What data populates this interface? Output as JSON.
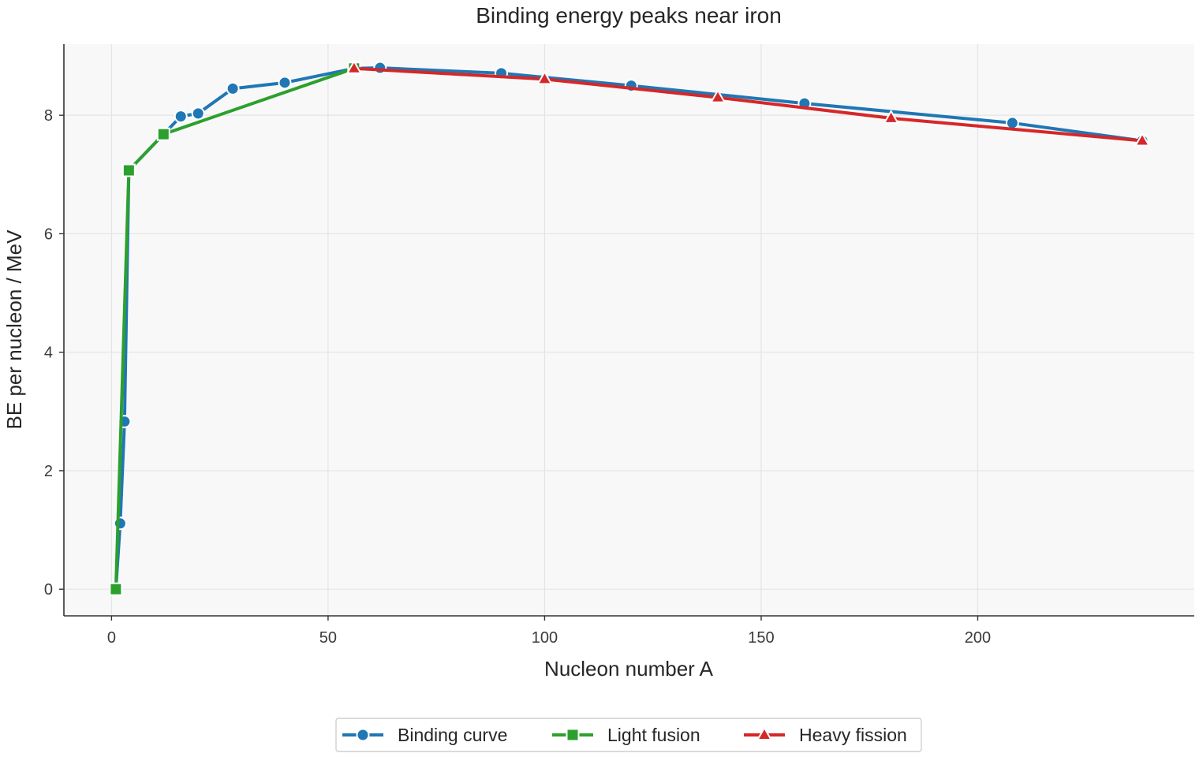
{
  "chart_data": {
    "type": "line",
    "title": "Binding energy peaks near iron",
    "xlabel": "Nucleon number A",
    "ylabel": "BE per nucleon / MeV",
    "xlim": [
      -11,
      250
    ],
    "ylim": [
      -0.45,
      9.2
    ],
    "xticks": [
      0,
      50,
      100,
      150,
      200
    ],
    "yticks": [
      0,
      2,
      4,
      6,
      8
    ],
    "grid": true,
    "legend_position": "bottom-center",
    "series": [
      {
        "name": "Binding curve",
        "color": "#1f77b4",
        "marker": "circle",
        "x": [
          1,
          2,
          3,
          4,
          12,
          16,
          20,
          28,
          40,
          56,
          62,
          90,
          120,
          160,
          208,
          238
        ],
        "y": [
          0,
          1.11,
          2.83,
          7.07,
          7.68,
          7.98,
          8.03,
          8.45,
          8.55,
          8.79,
          8.8,
          8.71,
          8.5,
          8.2,
          7.87,
          7.57
        ]
      },
      {
        "name": "Light fusion",
        "color": "#2ca02c",
        "marker": "square",
        "x": [
          1,
          4,
          12,
          56
        ],
        "y": [
          0,
          7.07,
          7.68,
          8.79
        ]
      },
      {
        "name": "Heavy fission",
        "color": "#d62728",
        "marker": "triangle",
        "x": [
          56,
          100,
          140,
          180,
          238
        ],
        "y": [
          8.79,
          8.61,
          8.3,
          7.95,
          7.57
        ]
      }
    ]
  }
}
